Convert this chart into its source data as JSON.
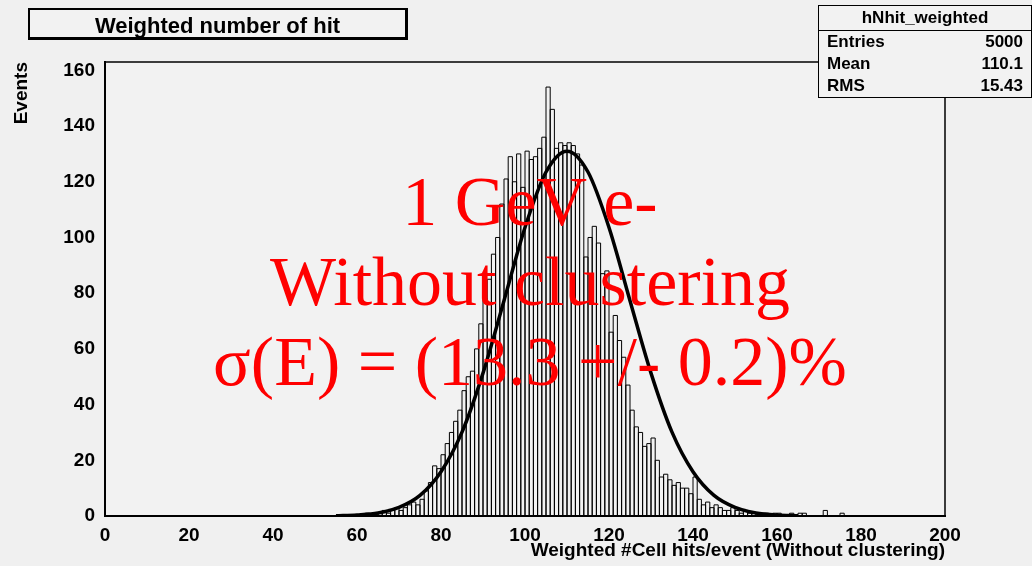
{
  "chart_data": {
    "type": "histogram",
    "title": "Weighted number of hit",
    "xlabel": "Weighted #Cell hits/event (Without clustering)",
    "ylabel": "Events",
    "annotations": [
      "1 GeV e-",
      "Without clustering",
      "σ(E) = (13.3 +/- 0.2)%",
      "hNhit_weighted",
      "Entries 5000",
      "Mean 110.1",
      "RMS 15.43"
    ],
    "bins": [
      50,
      51,
      52,
      53,
      54,
      55,
      56,
      57,
      58,
      59,
      60,
      61,
      62,
      63,
      64,
      65,
      66,
      67,
      68,
      69,
      70,
      71,
      72,
      73,
      74,
      75,
      76,
      77,
      78,
      79,
      80,
      81,
      82,
      83,
      84,
      85,
      86,
      87,
      88,
      89,
      90,
      91,
      92,
      93,
      94,
      95,
      96,
      97,
      98,
      99,
      100,
      101,
      102,
      103,
      104,
      105,
      106,
      107,
      108,
      109,
      110,
      111,
      112,
      113,
      114,
      115,
      116,
      117,
      118,
      119,
      120,
      121,
      122,
      123,
      124,
      125,
      126,
      127,
      128,
      129,
      130,
      131,
      132,
      133,
      134,
      135,
      136,
      137,
      138,
      139,
      140,
      141,
      142,
      143,
      144,
      145,
      146,
      147,
      148,
      149,
      150,
      151,
      152,
      153,
      154,
      155,
      156,
      157,
      158,
      159,
      160,
      161,
      162,
      163,
      164,
      165,
      166,
      167,
      168,
      169,
      170,
      171,
      172,
      173,
      174,
      175,
      176,
      177,
      178,
      179,
      180
    ],
    "series": [
      {
        "color": "#000000",
        "values": [
          0,
          0,
          0,
          0,
          0,
          0,
          0,
          0,
          0,
          0,
          0,
          0,
          1,
          0,
          1,
          1,
          2,
          1,
          2,
          3,
          2,
          3,
          4,
          5,
          4,
          6,
          9,
          12,
          18,
          17,
          22,
          26,
          30,
          34,
          38,
          45,
          50,
          52,
          60,
          69,
          78,
          85,
          94,
          100,
          112,
          121,
          129,
          120,
          130,
          118,
          131,
          128,
          129,
          132,
          136,
          154,
          146,
          132,
          134,
          133,
          134,
          133,
          130,
          126,
          93,
          100,
          104,
          98,
          87,
          88,
          66,
          72,
          63,
          57,
          47,
          38,
          32,
          30,
          25,
          26,
          28,
          20,
          14,
          15,
          13,
          11,
          12,
          10,
          10,
          8,
          14,
          6,
          4,
          5,
          3,
          4,
          3,
          2,
          2,
          3,
          2,
          1,
          2,
          1,
          1,
          1,
          0,
          1,
          0,
          1,
          1,
          0,
          0,
          1,
          0,
          1,
          1,
          0,
          0,
          0,
          0,
          2,
          0,
          0,
          0,
          1,
          0,
          0,
          0,
          0
        ]
      },
      {
        "type": "line",
        "color": "#000000",
        "x": [
          55,
          60,
          65,
          70,
          75,
          80,
          85,
          90,
          95,
          100,
          105,
          110,
          115,
          120,
          125,
          130,
          135,
          140,
          145,
          150,
          155,
          160,
          165
        ],
        "values": [
          0.1,
          0.4,
          1.1,
          3.1,
          7.4,
          15.9,
          30.1,
          51.3,
          77.3,
          103.6,
          123.5,
          131,
          123.5,
          103.6,
          77.3,
          51.3,
          30.1,
          15.9,
          7.4,
          3.1,
          1.1,
          0.4,
          0.1
        ]
      }
    ],
    "xlim": [
      0,
      200
    ],
    "xticks": [
      0,
      20,
      40,
      60,
      80,
      100,
      120,
      140,
      160,
      180,
      200
    ],
    "ylim": [
      0,
      163
    ],
    "yticks": [
      0,
      20,
      40,
      60,
      80,
      100,
      120,
      140,
      160
    ]
  }
}
